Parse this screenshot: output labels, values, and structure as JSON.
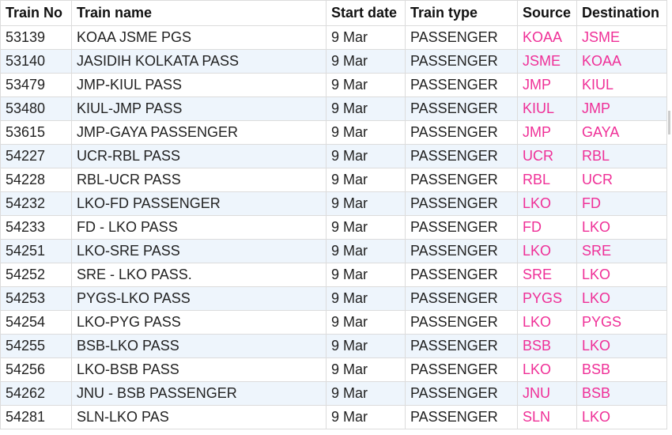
{
  "table": {
    "columns": [
      "Train No",
      "Train name",
      "Start date",
      "Train type",
      "Source",
      "Destination"
    ],
    "rows": [
      [
        "53139",
        "KOAA JSME PGS",
        "9 Mar",
        "PASSENGER",
        "KOAA",
        "JSME"
      ],
      [
        "53140",
        "JASIDIH KOLKATA PASS",
        "9 Mar",
        "PASSENGER",
        "JSME",
        "KOAA"
      ],
      [
        "53479",
        "JMP-KIUL PASS",
        "9 Mar",
        "PASSENGER",
        "JMP",
        "KIUL"
      ],
      [
        "53480",
        "KIUL-JMP PASS",
        "9 Mar",
        "PASSENGER",
        "KIUL",
        "JMP"
      ],
      [
        "53615",
        "JMP-GAYA PASSENGER",
        "9 Mar",
        "PASSENGER",
        "JMP",
        "GAYA"
      ],
      [
        "54227",
        "UCR-RBL PASS",
        "9 Mar",
        "PASSENGER",
        "UCR",
        "RBL"
      ],
      [
        "54228",
        "RBL-UCR PASS",
        "9 Mar",
        "PASSENGER",
        "RBL",
        "UCR"
      ],
      [
        "54232",
        "LKO-FD PASSENGER",
        "9 Mar",
        "PASSENGER",
        "LKO",
        "FD"
      ],
      [
        "54233",
        "FD - LKO PASS",
        "9 Mar",
        "PASSENGER",
        "FD",
        "LKO"
      ],
      [
        "54251",
        "LKO-SRE PASS",
        "9 Mar",
        "PASSENGER",
        "LKO",
        "SRE"
      ],
      [
        "54252",
        "SRE - LKO PASS.",
        "9 Mar",
        "PASSENGER",
        "SRE",
        "LKO"
      ],
      [
        "54253",
        "PYGS-LKO PASS",
        "9 Mar",
        "PASSENGER",
        "PYGS",
        "LKO"
      ],
      [
        "54254",
        "LKO-PYG PASS",
        "9 Mar",
        "PASSENGER",
        "LKO",
        "PYGS"
      ],
      [
        "54255",
        "BSB-LKO PASS",
        "9 Mar",
        "PASSENGER",
        "BSB",
        "LKO"
      ],
      [
        "54256",
        "LKO-BSB PASS",
        "9 Mar",
        "PASSENGER",
        "LKO",
        "BSB"
      ],
      [
        "54262",
        "JNU - BSB PASSENGER",
        "9 Mar",
        "PASSENGER",
        "JNU",
        "BSB"
      ],
      [
        "54281",
        "SLN-LKO PAS",
        "9 Mar",
        "PASSENGER",
        "SLN",
        "LKO"
      ]
    ]
  }
}
